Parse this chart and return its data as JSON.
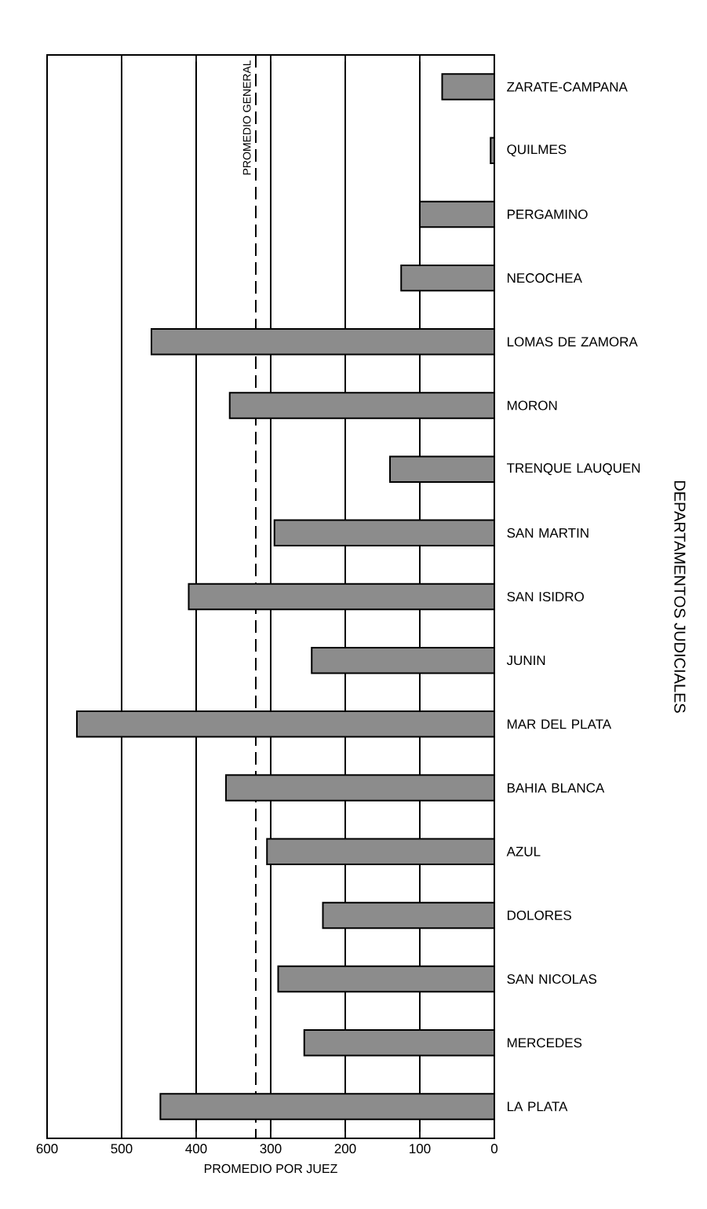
{
  "chart_data": {
    "type": "bar",
    "orientation": "horizontal",
    "xlabel": "PROMEDIO POR JUEZ",
    "ylabel": "DEPARTAMENTOS JUDICIALES",
    "categories": [
      "ZARATE-CAMPANA",
      "QUILMES",
      "PERGAMINO",
      "NECOCHEA",
      "LOMAS DE ZAMORA",
      "MORON",
      "TRENQUE LAUQUEN",
      "SAN MARTIN",
      "SAN ISIDRO",
      "JUNIN",
      "MAR DEL PLATA",
      "BAHIA BLANCA",
      "AZUL",
      "DOLORES",
      "SAN NICOLAS",
      "MERCEDES",
      "LA PLATA"
    ],
    "values": [
      70,
      5,
      100,
      125,
      460,
      355,
      140,
      295,
      410,
      245,
      560,
      360,
      305,
      230,
      290,
      255,
      448
    ],
    "color": "#8c8c8c",
    "xlim": [
      600,
      0
    ],
    "xticks": [
      600,
      500,
      400,
      300,
      200,
      100,
      0
    ],
    "grid": "x",
    "ref_lines": [
      {
        "axis": "x",
        "value": 320,
        "label": "PROMEDIO GENERAL",
        "line_style": "dashed"
      }
    ]
  }
}
